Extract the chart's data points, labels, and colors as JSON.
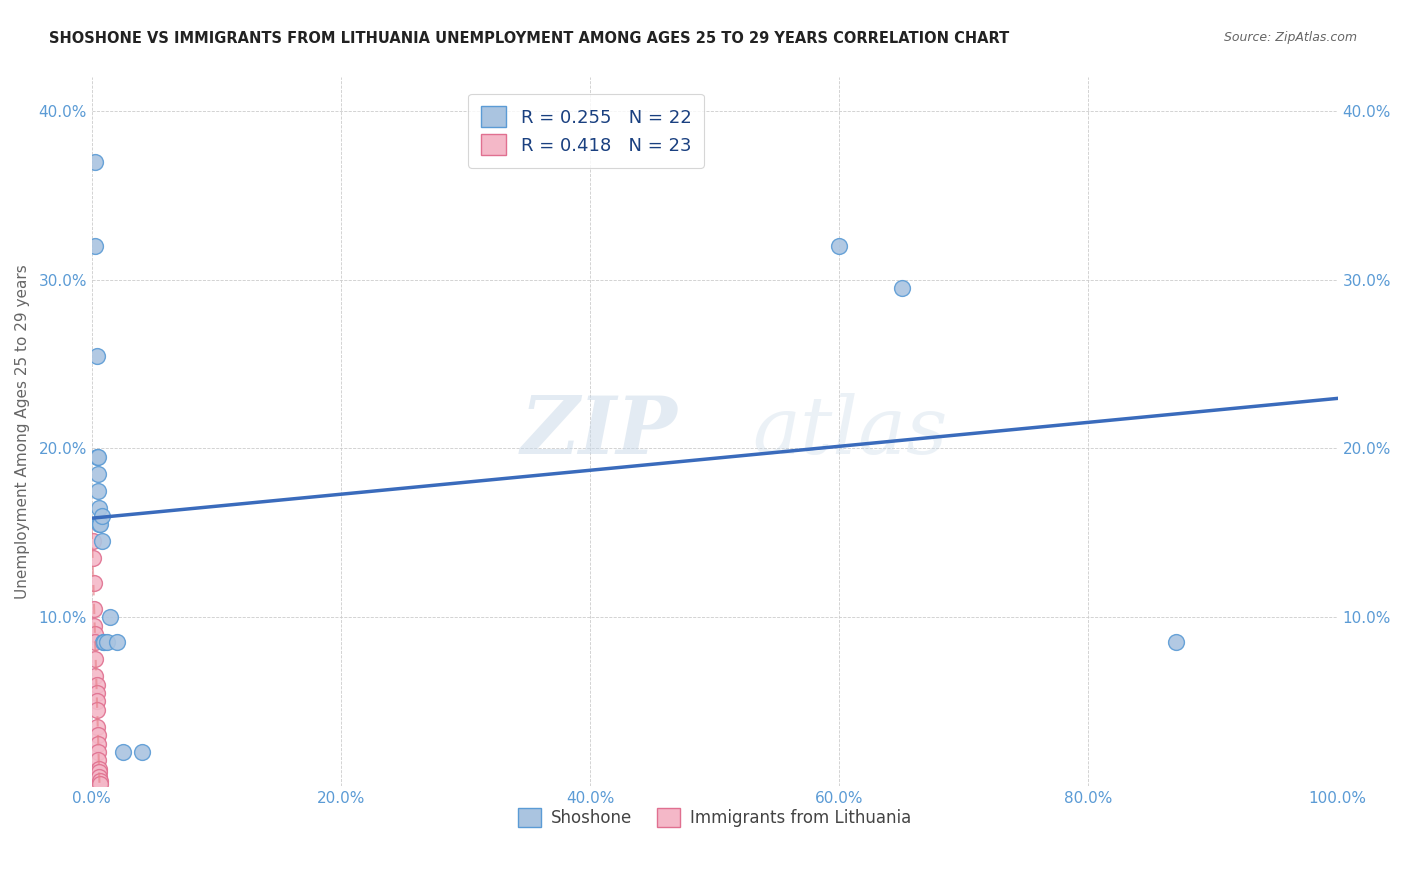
{
  "title": "SHOSHONE VS IMMIGRANTS FROM LITHUANIA UNEMPLOYMENT AMONG AGES 25 TO 29 YEARS CORRELATION CHART",
  "source": "Source: ZipAtlas.com",
  "ylabel": "Unemployment Among Ages 25 to 29 years",
  "xlim": [
    0,
    1.0
  ],
  "ylim": [
    0,
    0.42
  ],
  "shoshone_x": [
    0.003,
    0.003,
    0.004,
    0.004,
    0.005,
    0.005,
    0.005,
    0.006,
    0.006,
    0.007,
    0.008,
    0.008,
    0.009,
    0.01,
    0.012,
    0.015,
    0.02,
    0.025,
    0.04,
    0.6,
    0.65,
    0.87
  ],
  "shoshone_y": [
    0.37,
    0.32,
    0.255,
    0.195,
    0.195,
    0.185,
    0.175,
    0.165,
    0.155,
    0.155,
    0.16,
    0.145,
    0.085,
    0.085,
    0.085,
    0.1,
    0.085,
    0.02,
    0.02,
    0.32,
    0.295,
    0.085
  ],
  "lithuania_x": [
    0.001,
    0.001,
    0.002,
    0.002,
    0.002,
    0.003,
    0.003,
    0.003,
    0.003,
    0.004,
    0.004,
    0.004,
    0.004,
    0.004,
    0.005,
    0.005,
    0.005,
    0.005,
    0.006,
    0.006,
    0.006,
    0.007,
    0.007
  ],
  "lithuania_y": [
    0.145,
    0.135,
    0.12,
    0.105,
    0.095,
    0.09,
    0.085,
    0.075,
    0.065,
    0.06,
    0.055,
    0.05,
    0.045,
    0.035,
    0.03,
    0.025,
    0.02,
    0.015,
    0.01,
    0.008,
    0.005,
    0.003,
    0.001
  ],
  "shoshone_color": "#aac4e0",
  "shoshone_edge_color": "#5b9bd5",
  "lithuania_color": "#f4b8c8",
  "lithuania_edge_color": "#e07090",
  "shoshone_R": 0.255,
  "shoshone_N": 22,
  "lithuania_R": 0.418,
  "lithuania_N": 23,
  "blue_line_color": "#3a6bbc",
  "pink_line_color": "#e8808a",
  "watermark_1": "ZIP",
  "watermark_2": "atlas",
  "background_color": "#ffffff",
  "grid_color": "#cccccc",
  "tick_color": "#5b9bd5",
  "label_color": "#666666"
}
